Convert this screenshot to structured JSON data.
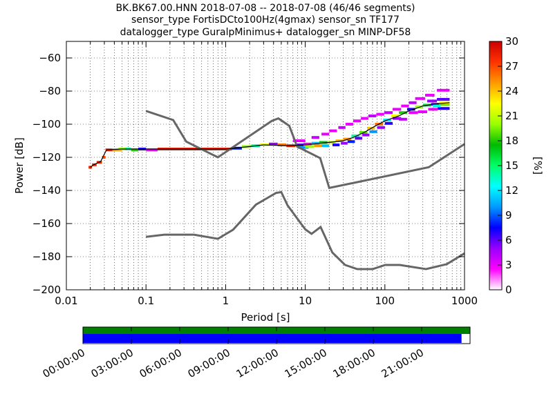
{
  "title_lines": [
    "BK.BK67.00.HNN   2018-07-08 -- 2018-07-08  (46/46 segments)",
    "sensor_type FortisDCto100Hz(4gmax) sensor_sn TF177",
    "datalogger_type GuralpMinimus+ datalogger_sn MINP-DF58"
  ],
  "chart_data": {
    "type": "heatmap",
    "xlabel": "Period [s]",
    "ylabel": "Power [dB]",
    "xscale": "log",
    "xlim": [
      0.01,
      1000
    ],
    "ylim": [
      -200,
      -50
    ],
    "x_ticks": [
      {
        "value": 0.01,
        "label": "0.01"
      },
      {
        "value": 0.1,
        "label": "0.1"
      },
      {
        "value": 1,
        "label": "1"
      },
      {
        "value": 10,
        "label": "10"
      },
      {
        "value": 100,
        "label": "100"
      },
      {
        "value": 1000,
        "label": "1000"
      }
    ],
    "y_ticks": [
      {
        "value": -60,
        "label": "−60"
      },
      {
        "value": -80,
        "label": "−80"
      },
      {
        "value": -100,
        "label": "−100"
      },
      {
        "value": -120,
        "label": "−120"
      },
      {
        "value": -140,
        "label": "−140"
      },
      {
        "value": -160,
        "label": "−160"
      },
      {
        "value": -180,
        "label": "−180"
      },
      {
        "value": -200,
        "label": "−200"
      }
    ],
    "grid": true,
    "colorbar": {
      "label": "[%]",
      "range": [
        0,
        30
      ],
      "ticks": [
        {
          "value": 0,
          "label": "0"
        },
        {
          "value": 3,
          "label": "3"
        },
        {
          "value": 6,
          "label": "6"
        },
        {
          "value": 9,
          "label": "9"
        },
        {
          "value": 12,
          "label": "12"
        },
        {
          "value": 15,
          "label": "15"
        },
        {
          "value": 18,
          "label": "18"
        },
        {
          "value": 21,
          "label": "21"
        },
        {
          "value": 24,
          "label": "24"
        },
        {
          "value": 27,
          "label": "27"
        },
        {
          "value": 30,
          "label": "30"
        }
      ],
      "colors": [
        "#ffffff",
        "#ff00ff",
        "#9900ff",
        "#0000ff",
        "#0099ff",
        "#00ffff",
        "#00ff66",
        "#00bb00",
        "#99ff00",
        "#ffff00",
        "#ff9900",
        "#ff3300",
        "#cc0000"
      ]
    },
    "noise_model_high": [
      [
        0.1,
        -92
      ],
      [
        0.22,
        -97.5
      ],
      [
        0.32,
        -110.5
      ],
      [
        0.8,
        -120
      ],
      [
        3.8,
        -98
      ],
      [
        4.6,
        -96.5
      ],
      [
        6.3,
        -101
      ],
      [
        7.9,
        -113.5
      ],
      [
        15.4,
        -120.5
      ],
      [
        20,
        -138.5
      ],
      [
        354.8,
        -126
      ],
      [
        1000,
        -112
      ]
    ],
    "noise_model_low": [
      [
        0.1,
        -168
      ],
      [
        0.17,
        -166.7
      ],
      [
        0.4,
        -166.7
      ],
      [
        0.8,
        -169.2
      ],
      [
        1.24,
        -163.7
      ],
      [
        2.4,
        -148.6
      ],
      [
        4.3,
        -141.5
      ],
      [
        5,
        -141
      ],
      [
        6,
        -149
      ],
      [
        10,
        -163.5
      ],
      [
        12,
        -166.2
      ],
      [
        15.6,
        -162.1
      ],
      [
        21.9,
        -177.5
      ],
      [
        31.6,
        -185
      ],
      [
        45,
        -187.5
      ],
      [
        70,
        -187.5
      ],
      [
        101,
        -185
      ],
      [
        154,
        -185
      ],
      [
        328,
        -187.5
      ],
      [
        600,
        -184.5
      ],
      [
        1000,
        -178
      ]
    ],
    "median_line": [
      [
        0.02,
        -126
      ],
      [
        0.022,
        -124.5
      ],
      [
        0.027,
        -122.5
      ],
      [
        0.03,
        -118
      ],
      [
        0.032,
        -115.5
      ],
      [
        0.05,
        -115
      ],
      [
        0.1,
        -115
      ],
      [
        1,
        -115
      ],
      [
        2,
        -113.5
      ],
      [
        3,
        -112.5
      ],
      [
        6,
        -113
      ],
      [
        10,
        -112.5
      ],
      [
        20,
        -111
      ],
      [
        30,
        -110
      ],
      [
        40,
        -108
      ],
      [
        55,
        -105
      ],
      [
        70,
        -102
      ],
      [
        100,
        -98
      ],
      [
        150,
        -95
      ],
      [
        200,
        -92
      ],
      [
        300,
        -89
      ],
      [
        400,
        -88
      ],
      [
        650,
        -87
      ]
    ],
    "ppsd_cells": [
      {
        "x": [
          0.019,
          0.021
        ],
        "y": -126,
        "p": 28
      },
      {
        "x": [
          0.021,
          0.024
        ],
        "y": -124.5,
        "p": 28
      },
      {
        "x": [
          0.024,
          0.028
        ],
        "y": -123,
        "p": 28
      },
      {
        "x": [
          0.028,
          0.031
        ],
        "y": -120,
        "p": 27
      },
      {
        "x": [
          0.031,
          0.038
        ],
        "y": -115.5,
        "p": 28
      },
      {
        "x": [
          0.038,
          0.05
        ],
        "y": -115.5,
        "p": 25
      },
      {
        "x": [
          0.045,
          0.055
        ],
        "y": -115,
        "p": 20
      },
      {
        "x": [
          0.055,
          0.065
        ],
        "y": -115,
        "p": 14
      },
      {
        "x": [
          0.065,
          0.08
        ],
        "y": -115.5,
        "p": 18
      },
      {
        "x": [
          0.08,
          0.1
        ],
        "y": -115,
        "p": 7
      },
      {
        "x": [
          0.1,
          0.14
        ],
        "y": -115.5,
        "p": 3
      },
      {
        "x": [
          0.14,
          1.2
        ],
        "y": -115,
        "p": 28
      },
      {
        "x": [
          1.2,
          1.6
        ],
        "y": -114.5,
        "p": 8
      },
      {
        "x": [
          1.6,
          2.1
        ],
        "y": -113.5,
        "p": 20
      },
      {
        "x": [
          2.1,
          2.7
        ],
        "y": -113,
        "p": 14
      },
      {
        "x": [
          2.7,
          3.5
        ],
        "y": -112.5,
        "p": 22
      },
      {
        "x": [
          3.5,
          4.5
        ],
        "y": -112,
        "p": 5
      },
      {
        "x": [
          4.5,
          5.8
        ],
        "y": -112.5,
        "p": 26
      },
      {
        "x": [
          5.8,
          7.5
        ],
        "y": -113,
        "p": 28
      },
      {
        "x": [
          7.5,
          9.5
        ],
        "y": -112.5,
        "p": 6
      },
      {
        "x": [
          9.5,
          12
        ],
        "y": -112,
        "p": 3
      },
      {
        "x": [
          12,
          15
        ],
        "y": -111.5,
        "p": 11
      },
      {
        "x": [
          15,
          19
        ],
        "y": -111,
        "p": 17
      },
      {
        "x": [
          19,
          24
        ],
        "y": -111,
        "p": 21
      },
      {
        "x": [
          24,
          30
        ],
        "y": -110,
        "p": 24
      },
      {
        "x": [
          30,
          38
        ],
        "y": -109,
        "p": 25
      },
      {
        "x": [
          38,
          48
        ],
        "y": -107,
        "p": 14
      },
      {
        "x": [
          48,
          60
        ],
        "y": -105,
        "p": 19
      },
      {
        "x": [
          60,
          75
        ],
        "y": -102.5,
        "p": 24
      },
      {
        "x": [
          75,
          95
        ],
        "y": -100,
        "p": 26
      },
      {
        "x": [
          95,
          120
        ],
        "y": -97.5,
        "p": 12
      },
      {
        "x": [
          120,
          150
        ],
        "y": -95,
        "p": 22
      },
      {
        "x": [
          150,
          190
        ],
        "y": -93,
        "p": 18
      },
      {
        "x": [
          190,
          240
        ],
        "y": -91,
        "p": 7
      },
      {
        "x": [
          240,
          300
        ],
        "y": -89.5,
        "p": 20
      },
      {
        "x": [
          300,
          380
        ],
        "y": -88.5,
        "p": 16
      },
      {
        "x": [
          380,
          480
        ],
        "y": -88,
        "p": 6
      },
      {
        "x": [
          480,
          650
        ],
        "y": -88,
        "p": 19
      },
      {
        "x": [
          7,
          10
        ],
        "y": -110,
        "p": 3
      },
      {
        "x": [
          8,
          11
        ],
        "y": -114,
        "p": 10
      },
      {
        "x": [
          10,
          13
        ],
        "y": -113.5,
        "p": 20
      },
      {
        "x": [
          12,
          15
        ],
        "y": -108,
        "p": 4
      },
      {
        "x": [
          13,
          16
        ],
        "y": -113,
        "p": 25
      },
      {
        "x": [
          16,
          20
        ],
        "y": -106,
        "p": 3
      },
      {
        "x": [
          16,
          20
        ],
        "y": -113,
        "p": 11
      },
      {
        "x": [
          20,
          25
        ],
        "y": -104,
        "p": 3
      },
      {
        "x": [
          22,
          27
        ],
        "y": -112.5,
        "p": 7
      },
      {
        "x": [
          26,
          32
        ],
        "y": -102,
        "p": 4
      },
      {
        "x": [
          28,
          34
        ],
        "y": -111.5,
        "p": 5
      },
      {
        "x": [
          32,
          40
        ],
        "y": -100,
        "p": 3
      },
      {
        "x": [
          34,
          42
        ],
        "y": -110.5,
        "p": 8
      },
      {
        "x": [
          40,
          50
        ],
        "y": -98,
        "p": 3
      },
      {
        "x": [
          42,
          52
        ],
        "y": -108.5,
        "p": 6
      },
      {
        "x": [
          50,
          62
        ],
        "y": -96.5,
        "p": 3
      },
      {
        "x": [
          52,
          64
        ],
        "y": -106.5,
        "p": 5
      },
      {
        "x": [
          62,
          78
        ],
        "y": -95,
        "p": 4
      },
      {
        "x": [
          64,
          80
        ],
        "y": -104.5,
        "p": 10
      },
      {
        "x": [
          78,
          98
        ],
        "y": -94,
        "p": 3
      },
      {
        "x": [
          80,
          100
        ],
        "y": -102,
        "p": 5
      },
      {
        "x": [
          98,
          125
        ],
        "y": -93,
        "p": 4
      },
      {
        "x": [
          100,
          125
        ],
        "y": -99.5,
        "p": 7
      },
      {
        "x": [
          125,
          160
        ],
        "y": -91,
        "p": 3
      },
      {
        "x": [
          125,
          160
        ],
        "y": -96.5,
        "p": 5
      },
      {
        "x": [
          150,
          190
        ],
        "y": -97,
        "p": 4
      },
      {
        "x": [
          160,
          200
        ],
        "y": -89,
        "p": 3
      },
      {
        "x": [
          200,
          250
        ],
        "y": -87,
        "p": 4
      },
      {
        "x": [
          200,
          260
        ],
        "y": -93,
        "p": 3
      },
      {
        "x": [
          240,
          320
        ],
        "y": -84.5,
        "p": 3
      },
      {
        "x": [
          260,
          340
        ],
        "y": -92.5,
        "p": 3
      },
      {
        "x": [
          320,
          420
        ],
        "y": -82.5,
        "p": 3
      },
      {
        "x": [
          340,
          450
        ],
        "y": -86,
        "p": 5
      },
      {
        "x": [
          350,
          460
        ],
        "y": -91,
        "p": 3
      },
      {
        "x": [
          450,
          650
        ],
        "y": -85,
        "p": 6
      },
      {
        "x": [
          460,
          650
        ],
        "y": -90.5,
        "p": 7
      },
      {
        "x": [
          450,
          650
        ],
        "y": -79.5,
        "p": 3
      },
      {
        "x": [
          480,
          650
        ],
        "y": -87,
        "p": 23
      },
      {
        "x": [
          400,
          500
        ],
        "y": -89,
        "p": 13
      }
    ],
    "time_axis": {
      "ticks": [
        "00:00:00",
        "03:00:00",
        "06:00:00",
        "09:00:00",
        "12:00:00",
        "15:00:00",
        "18:00:00",
        "21:00:00"
      ],
      "coverage_top_fraction": 1.0,
      "coverage_bottom_fraction": 0.978,
      "top_color": "#008000",
      "bottom_color": "#0000ff"
    }
  }
}
